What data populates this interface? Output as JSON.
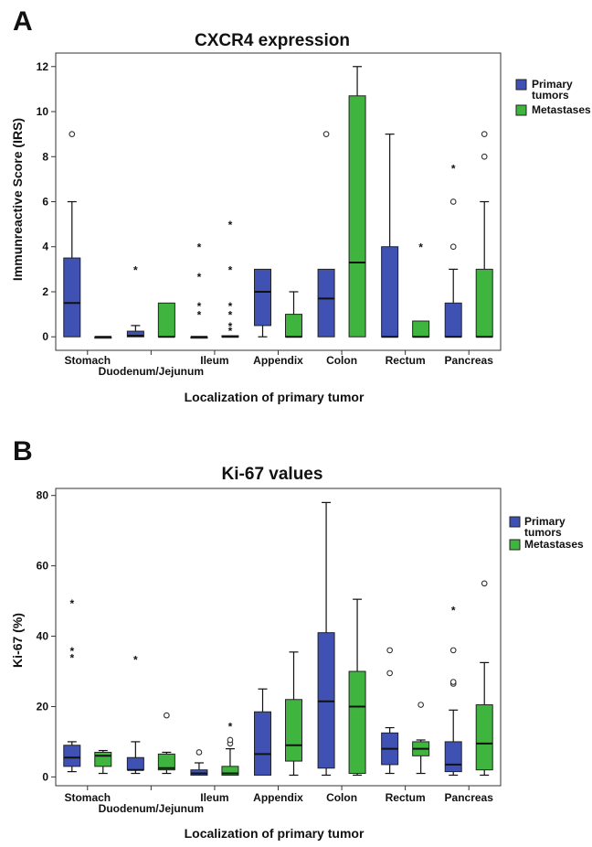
{
  "colors": {
    "primary": "#3f52b3",
    "metastases": "#3fb53f"
  },
  "chart_data": [
    {
      "type": "boxplot",
      "panel_letter": "A",
      "title": "CXCR4 expression",
      "xlabel": "Localization of primary tumor",
      "ylabel": "Immunreactive Score (IRS)",
      "ylim": [
        -0.6,
        12.6
      ],
      "yticks": [
        0,
        2,
        4,
        6,
        8,
        10,
        12
      ],
      "categories": [
        "Stomach",
        "Duodenum/Jejunum",
        "Ileum",
        "Appendix",
        "Colon",
        "Rectum",
        "Pancreas"
      ],
      "legend": {
        "position": "right",
        "entries": [
          [
            "Primary",
            "tumors"
          ],
          [
            "Metastases"
          ]
        ]
      },
      "series": [
        {
          "name": "Primary tumors",
          "boxes": [
            {
              "min": 0,
              "q1": 0,
              "median": 1.5,
              "q3": 3.5,
              "max": 6,
              "outliers": [
                9
              ],
              "extremes": []
            },
            {
              "min": 0,
              "q1": 0,
              "median": 0.05,
              "q3": 0.25,
              "max": 0.5,
              "outliers": [],
              "extremes": [
                3
              ]
            },
            {
              "min": 0,
              "q1": 0,
              "median": 0,
              "q3": 0,
              "max": 0,
              "outliers": [],
              "extremes": [
                4,
                2.7,
                1.4,
                1
              ]
            },
            {
              "min": 0,
              "q1": 0.5,
              "median": 2,
              "q3": 3,
              "max": 3,
              "outliers": [],
              "extremes": []
            },
            {
              "min": 0,
              "q1": 0,
              "median": 1.7,
              "q3": 3,
              "max": 3,
              "outliers": [
                9
              ],
              "extremes": []
            },
            {
              "min": 0,
              "q1": 0,
              "median": 0,
              "q3": 4,
              "max": 9,
              "outliers": [],
              "extremes": []
            },
            {
              "min": 0,
              "q1": 0,
              "median": 0,
              "q3": 1.5,
              "max": 3,
              "outliers": [
                4,
                6
              ],
              "extremes": [
                7.5
              ]
            }
          ]
        },
        {
          "name": "Metastases",
          "boxes": [
            {
              "min": 0,
              "q1": 0,
              "median": 0,
              "q3": 0,
              "max": 0,
              "outliers": [],
              "extremes": []
            },
            {
              "min": 0,
              "q1": 0,
              "median": 0,
              "q3": 1.5,
              "max": 1.5,
              "outliers": [],
              "extremes": []
            },
            {
              "min": 0,
              "q1": 0,
              "median": 0,
              "q3": 0.05,
              "max": 0.05,
              "outliers": [],
              "extremes": [
                5,
                3,
                1.4,
                1,
                0.5,
                0.3
              ]
            },
            {
              "min": 0,
              "q1": 0,
              "median": 0,
              "q3": 1,
              "max": 2,
              "outliers": [],
              "extremes": []
            },
            {
              "min": 0,
              "q1": 0,
              "median": 3.3,
              "q3": 10.7,
              "max": 12,
              "outliers": [],
              "extremes": []
            },
            {
              "min": 0,
              "q1": 0,
              "median": 0,
              "q3": 0.7,
              "max": 0.7,
              "outliers": [],
              "extremes": [
                4
              ]
            },
            {
              "min": 0,
              "q1": 0,
              "median": 0,
              "q3": 3,
              "max": 6,
              "outliers": [
                8,
                9
              ],
              "extremes": []
            }
          ]
        }
      ]
    },
    {
      "type": "boxplot",
      "panel_letter": "B",
      "title": "Ki-67 values",
      "xlabel": "Localization of primary tumor",
      "ylabel": "Ki-67 (%)",
      "ylim": [
        -2.5,
        82
      ],
      "yticks": [
        0,
        20,
        40,
        60,
        80
      ],
      "categories": [
        "Stomach",
        "Duodenum/Jejunum",
        "Ileum",
        "Appendix",
        "Colon",
        "Rectum",
        "Pancreas"
      ],
      "legend": {
        "position": "right",
        "entries": [
          [
            "Primary",
            "tumors"
          ],
          [
            "Metastases"
          ]
        ]
      },
      "series": [
        {
          "name": "Primary tumors",
          "boxes": [
            {
              "min": 1.5,
              "q1": 3,
              "median": 5.5,
              "q3": 9,
              "max": 10,
              "outliers": [],
              "extremes": [
                49.5,
                36,
                34
              ]
            },
            {
              "min": 1,
              "q1": 2,
              "median": 2,
              "q3": 5.5,
              "max": 10,
              "outliers": [],
              "extremes": [
                33.5
              ]
            },
            {
              "min": 0.5,
              "q1": 0.5,
              "median": 1,
              "q3": 2,
              "max": 4,
              "outliers": [
                7
              ],
              "extremes": []
            },
            {
              "min": 0.5,
              "q1": 0.5,
              "median": 6.5,
              "q3": 18.5,
              "max": 25,
              "outliers": [],
              "extremes": []
            },
            {
              "min": 0.5,
              "q1": 2.5,
              "median": 21.5,
              "q3": 41,
              "max": 78,
              "outliers": [],
              "extremes": []
            },
            {
              "min": 1,
              "q1": 3.5,
              "median": 8,
              "q3": 12.5,
              "max": 14,
              "outliers": [
                29.5,
                36
              ],
              "extremes": []
            },
            {
              "min": 0.5,
              "q1": 1.5,
              "median": 3.5,
              "q3": 10,
              "max": 19,
              "outliers": [
                26.5,
                27,
                36
              ],
              "extremes": [
                47.5
              ]
            }
          ]
        },
        {
          "name": "Metastases",
          "boxes": [
            {
              "min": 1,
              "q1": 3,
              "median": 6,
              "q3": 7,
              "max": 7.5,
              "outliers": [],
              "extremes": []
            },
            {
              "min": 1,
              "q1": 2,
              "median": 2.5,
              "q3": 6.5,
              "max": 7,
              "outliers": [
                17.5
              ],
              "extremes": []
            },
            {
              "min": 0.5,
              "q1": 0.5,
              "median": 1,
              "q3": 3,
              "max": 8,
              "outliers": [
                9.5,
                10.5
              ],
              "extremes": [
                14.5
              ]
            },
            {
              "min": 0.5,
              "q1": 4.5,
              "median": 9,
              "q3": 22,
              "max": 35.5,
              "outliers": [],
              "extremes": []
            },
            {
              "min": 0.5,
              "q1": 1,
              "median": 20,
              "q3": 30,
              "max": 50.5,
              "outliers": [],
              "extremes": []
            },
            {
              "min": 1,
              "q1": 6,
              "median": 8,
              "q3": 10,
              "max": 10.5,
              "outliers": [
                20.5
              ],
              "extremes": []
            },
            {
              "min": 0.5,
              "q1": 2,
              "median": 9.5,
              "q3": 20.5,
              "max": 32.5,
              "outliers": [
                55
              ],
              "extremes": []
            }
          ]
        }
      ]
    }
  ]
}
